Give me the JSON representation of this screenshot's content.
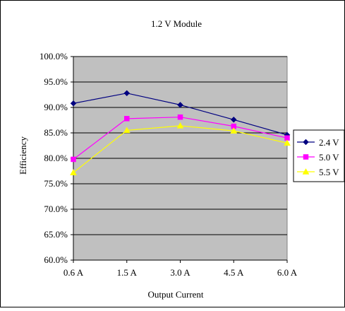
{
  "chart_data": {
    "type": "line",
    "title": "1.2 V Module",
    "xlabel": "Output Current",
    "ylabel": "Efficiency",
    "categories": [
      "0.6 A",
      "1.5 A",
      "3.0 A",
      "4.5 A",
      "6.0 A"
    ],
    "ylim": [
      60.0,
      100.0
    ],
    "y_ticks": [
      "60.0%",
      "65.0%",
      "70.0%",
      "75.0%",
      "80.0%",
      "85.0%",
      "90.0%",
      "95.0%",
      "100.0%"
    ],
    "y_tick_values": [
      60,
      65,
      70,
      75,
      80,
      85,
      90,
      95,
      100
    ],
    "grid": true,
    "legend_position": "right",
    "series": [
      {
        "name": "2.4 V",
        "values": [
          90.8,
          92.8,
          90.5,
          87.6,
          84.6
        ],
        "color": "#000080",
        "marker": "diamond"
      },
      {
        "name": "5.0 V",
        "values": [
          79.8,
          87.8,
          88.1,
          86.3,
          84.0
        ],
        "color": "#ff00ff",
        "marker": "square"
      },
      {
        "name": "5.5 V",
        "values": [
          77.2,
          85.5,
          86.4,
          85.4,
          83.0
        ],
        "color": "#ffff00",
        "marker": "triangle"
      }
    ],
    "colors": {
      "plot_background": "#c0c0c0",
      "gridline": "#000000"
    }
  }
}
